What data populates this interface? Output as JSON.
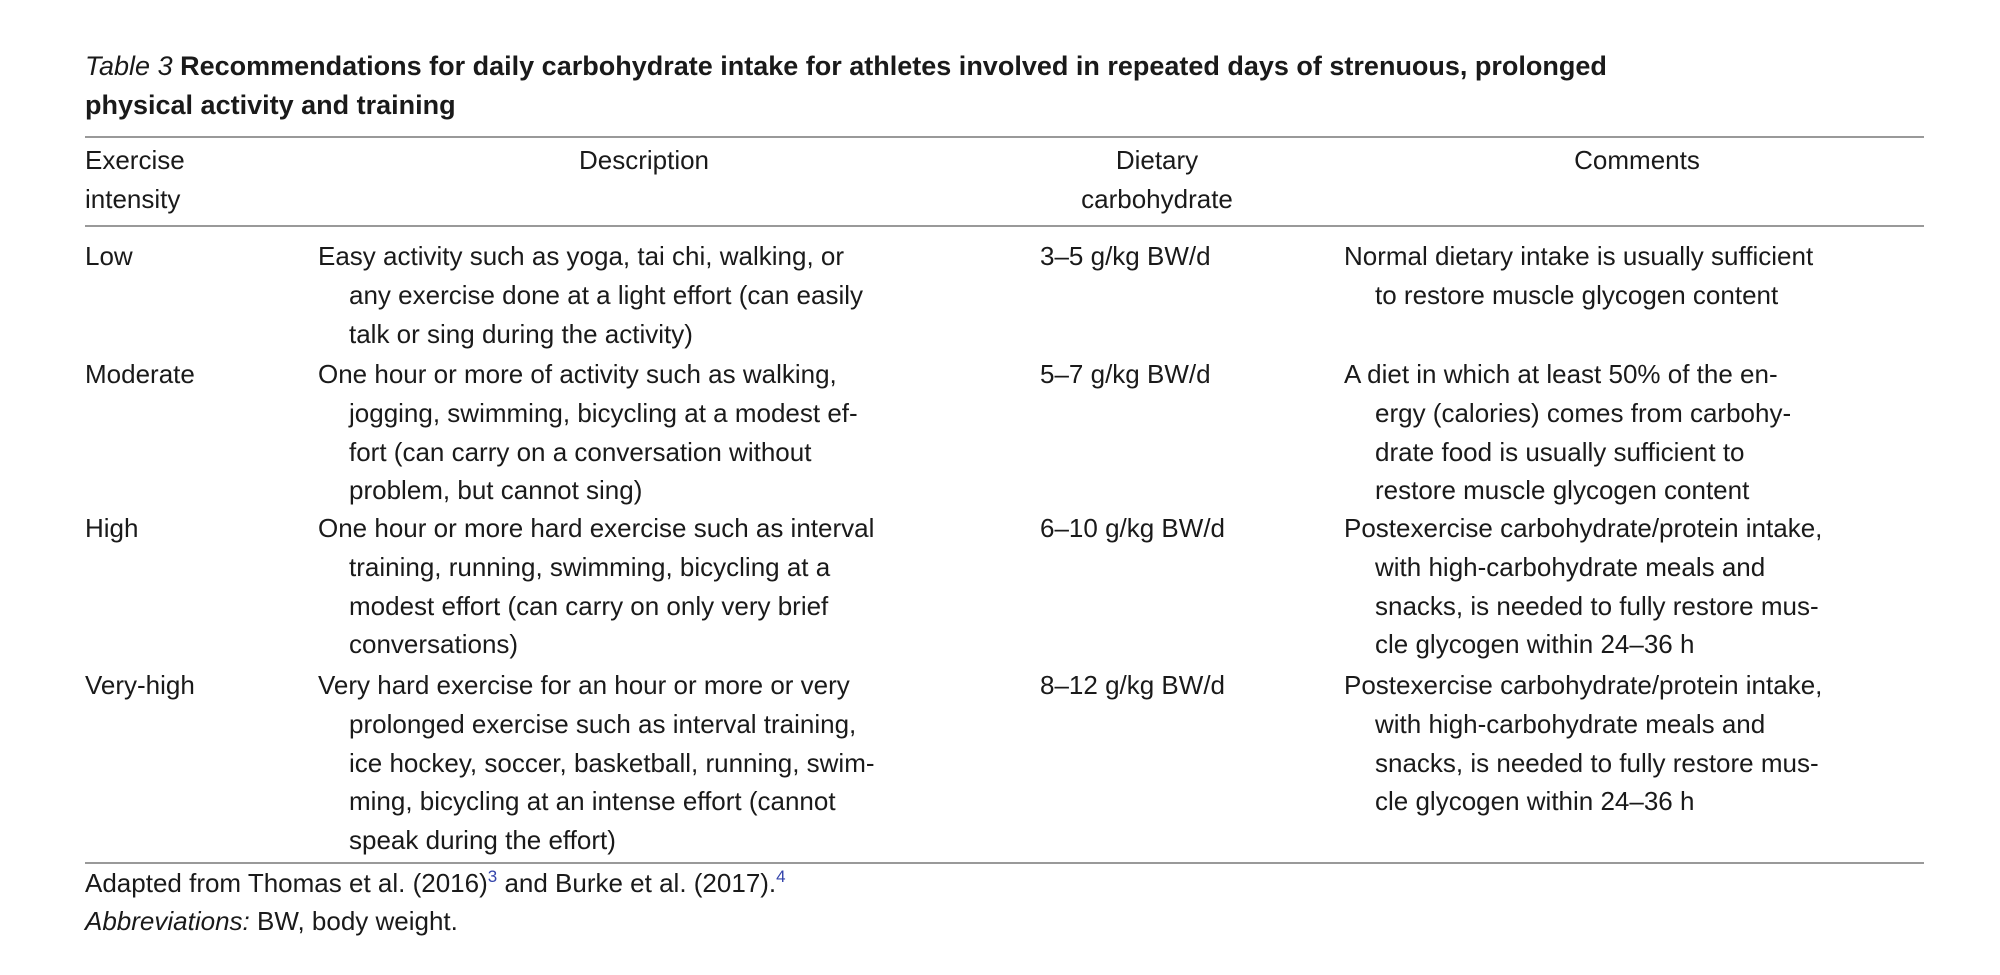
{
  "table": {
    "caption_label": "Table 3",
    "caption_title": [
      "Recommendations for daily carbohydrate intake for athletes involved in repeated days of strenuous, prolonged",
      "physical activity and training"
    ],
    "header": [
      [
        "Exercise",
        "intensity"
      ],
      [
        "Description"
      ],
      [
        "Dietary",
        "carbohydrate"
      ],
      [
        "Comments"
      ]
    ],
    "rows": [
      [
        [
          "Low"
        ],
        [
          "Easy activity such as yoga, tai chi, walking, or",
          "any exercise done at a light effort (can easily",
          "talk or sing during the activity)"
        ],
        [
          "3–5 g/kg BW/d"
        ],
        [
          "Normal dietary intake is usually sufficient",
          "to restore muscle glycogen content"
        ]
      ],
      [
        [
          "Moderate"
        ],
        [
          "One hour or more of activity such as walking,",
          "jogging, swimming, bicycling at a modest ef-",
          "fort (can carry on a conversation without",
          "problem, but cannot sing)"
        ],
        [
          "5–7 g/kg BW/d"
        ],
        [
          "A diet in which at least 50% of the en-",
          "ergy (calories) comes from carbohy-",
          "drate food is usually sufficient to",
          "restore muscle glycogen content"
        ]
      ],
      [
        [
          "High"
        ],
        [
          "One hour or more hard exercise such as interval",
          "training, running, swimming, bicycling at a",
          "modest effort (can carry on only very brief",
          "conversations)"
        ],
        [
          "6–10 g/kg BW/d"
        ],
        [
          "Postexercise carbohydrate/protein intake,",
          "with high-carbohydrate meals and",
          "snacks, is needed to fully restore mus-",
          "cle glycogen within 24–36 h"
        ]
      ],
      [
        [
          "Very-high"
        ],
        [
          "Very hard exercise for an hour or more or very",
          "prolonged exercise such as interval training,",
          "ice hockey, soccer, basketball, running, swim-",
          "ming, bicycling at an intense effort (cannot",
          "speak during the effort)"
        ],
        [
          "8–12 g/kg BW/d"
        ],
        [
          "Postexercise carbohydrate/protein intake,",
          "with high-carbohydrate meals and",
          "snacks, is needed to fully restore mus-",
          "cle glycogen within 24–36 h"
        ]
      ]
    ]
  },
  "footer": {
    "source": "Adapted from Thomas et al. (2016)",
    "ref1": "3",
    "middle": "and Burke et al. (2017).",
    "ref2": "4",
    "abbr_label": "Abbreviations:",
    "abbr_text": "BW, body weight."
  }
}
